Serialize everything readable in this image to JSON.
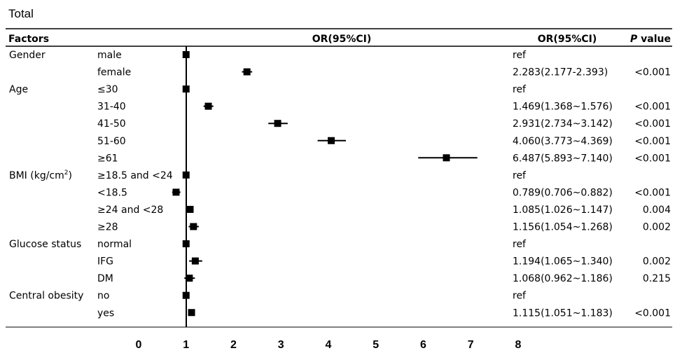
{
  "panel_title": "Total",
  "headers": {
    "factors": "Factors",
    "plot": "OR(95%CI)",
    "or_ci": "OR(95%CI)",
    "p_value_italic": "P",
    "p_value_rest": "value"
  },
  "colors": {
    "marker": "#000000",
    "line": "#000000",
    "text": "#000000"
  },
  "chart_data": {
    "type": "forest",
    "xlim": [
      0,
      8
    ],
    "x_ticks": [
      "0",
      "1",
      "2",
      "3",
      "4",
      "5",
      "6",
      "7",
      "8"
    ],
    "reference_value": 1,
    "rows": [
      {
        "factor": "Gender",
        "level": "male",
        "or": 1,
        "lo": 1,
        "hi": 1,
        "text": "ref",
        "p": ""
      },
      {
        "factor": "",
        "level": "female",
        "or": 2.283,
        "lo": 2.177,
        "hi": 2.393,
        "text": "2.283(2.177-2.393)",
        "p": "<0.001"
      },
      {
        "factor": "Age",
        "level": "≤30",
        "or": 1,
        "lo": 1,
        "hi": 1,
        "text": "ref",
        "p": ""
      },
      {
        "factor": "",
        "level": "31-40",
        "or": 1.469,
        "lo": 1.368,
        "hi": 1.576,
        "text": "1.469(1.368~1.576)",
        "p": "<0.001"
      },
      {
        "factor": "",
        "level": "41-50",
        "or": 2.931,
        "lo": 2.734,
        "hi": 3.142,
        "text": "2.931(2.734~3.142)",
        "p": "<0.001"
      },
      {
        "factor": "",
        "level": "51-60",
        "or": 4.06,
        "lo": 3.773,
        "hi": 4.369,
        "text": "4.060(3.773~4.369)",
        "p": "<0.001"
      },
      {
        "factor": "",
        "level": "≥61",
        "or": 6.487,
        "lo": 5.893,
        "hi": 7.14,
        "text": "6.487(5.893~7.140)",
        "p": "<0.001"
      },
      {
        "factor": "BMI (kg/cm",
        "factor_sup": "2",
        "factor_tail": ")",
        "level": "≥18.5 and <24",
        "or": 1,
        "lo": 1,
        "hi": 1,
        "text": "ref",
        "p": ""
      },
      {
        "factor": "",
        "level": "<18.5",
        "or": 0.789,
        "lo": 0.706,
        "hi": 0.882,
        "text": "0.789(0.706~0.882)",
        "p": "<0.001"
      },
      {
        "factor": "",
        "level": "≥24 and <28",
        "or": 1.085,
        "lo": 1.026,
        "hi": 1.147,
        "text": "1.085(1.026~1.147)",
        "p": "0.004"
      },
      {
        "factor": "",
        "level": "≥28",
        "or": 1.156,
        "lo": 1.054,
        "hi": 1.268,
        "text": "1.156(1.054~1.268)",
        "p": "0.002"
      },
      {
        "factor": "Glucose status",
        "level": "normal",
        "or": 1,
        "lo": 1,
        "hi": 1,
        "text": "ref",
        "p": ""
      },
      {
        "factor": "",
        "level": "IFG",
        "or": 1.194,
        "lo": 1.065,
        "hi": 1.34,
        "text": "1.194(1.065~1.340)",
        "p": "0.002"
      },
      {
        "factor": "",
        "level": "DM",
        "or": 1.068,
        "lo": 0.962,
        "hi": 1.186,
        "text": "1.068(0.962~1.186)",
        "p": "0.215"
      },
      {
        "factor": "Central obesity",
        "level": "no",
        "or": 1,
        "lo": 1,
        "hi": 1,
        "text": "ref",
        "p": ""
      },
      {
        "factor": "",
        "level": "yes",
        "or": 1.115,
        "lo": 1.051,
        "hi": 1.183,
        "text": "1.115(1.051~1.183)",
        "p": "<0.001"
      }
    ]
  }
}
